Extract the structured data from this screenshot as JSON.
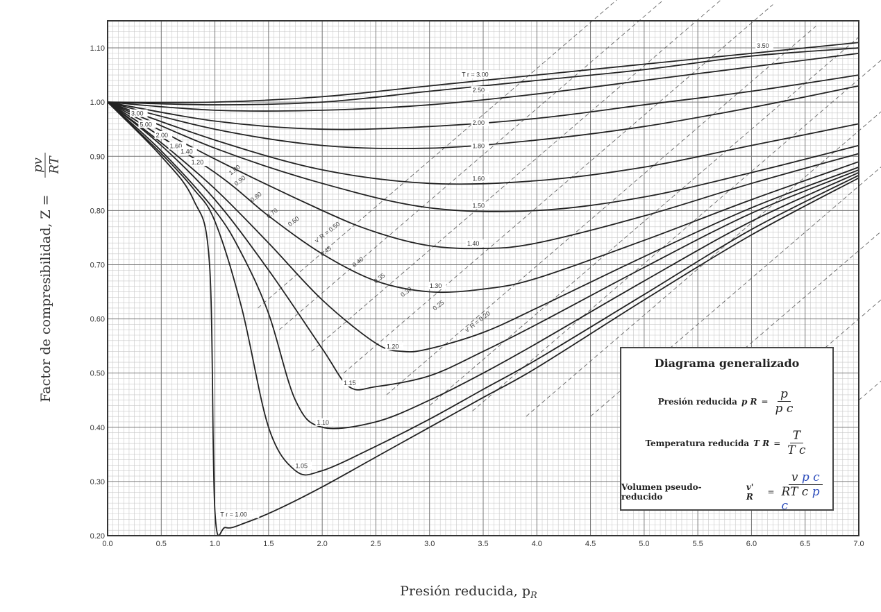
{
  "chart_data": {
    "type": "line",
    "title": "",
    "xlabel": "Presión reducida, p",
    "xlabel_sub": "R",
    "ylabel": "Factor de compresibilidad, Z = ",
    "ylabel_num": "pv",
    "ylabel_den": "RT",
    "xlim": [
      0.0,
      7.0
    ],
    "ylim": [
      0.2,
      1.15
    ],
    "grid": true,
    "x_ticks": [
      "0.0",
      "0.5",
      "1.0",
      "1.5",
      "2.0",
      "2.5",
      "3.0",
      "3.5",
      "4.0",
      "4.5",
      "5.0",
      "5.5",
      "6.0",
      "6.5",
      "7.0"
    ],
    "y_ticks": [
      "0.20",
      "0.30",
      "0.40",
      "0.50",
      "0.60",
      "0.70",
      "0.80",
      "0.90",
      "1.00",
      "1.10"
    ],
    "series": [
      {
        "name": "3.50",
        "x": [
          0,
          1,
          2,
          3,
          4,
          5,
          6,
          7
        ],
        "y": [
          1.0,
          1.0,
          1.01,
          1.03,
          1.05,
          1.07,
          1.09,
          1.11
        ]
      },
      {
        "name": "T r = 3.00",
        "x": [
          0,
          1,
          2,
          3,
          4,
          5,
          6,
          7
        ],
        "y": [
          1.0,
          0.995,
          1.0,
          1.02,
          1.04,
          1.06,
          1.085,
          1.1
        ]
      },
      {
        "name": "2.50",
        "x": [
          0,
          1,
          2,
          3,
          4,
          5,
          6,
          7
        ],
        "y": [
          1.0,
          0.985,
          0.985,
          0.995,
          1.015,
          1.04,
          1.065,
          1.09
        ]
      },
      {
        "name": "2.00",
        "x": [
          0,
          1,
          2,
          3,
          4,
          5,
          6,
          7
        ],
        "y": [
          1.0,
          0.965,
          0.95,
          0.955,
          0.97,
          0.995,
          1.02,
          1.05
        ]
      },
      {
        "name": "1.80",
        "x": [
          0,
          1,
          2,
          3,
          4,
          5,
          6,
          7
        ],
        "y": [
          1.0,
          0.95,
          0.92,
          0.915,
          0.93,
          0.955,
          0.99,
          1.03
        ]
      },
      {
        "name": "1.60",
        "x": [
          0,
          1,
          2,
          3,
          4,
          5,
          6,
          7
        ],
        "y": [
          1.0,
          0.93,
          0.875,
          0.85,
          0.855,
          0.88,
          0.92,
          0.96
        ]
      },
      {
        "name": "1.50",
        "x": [
          0,
          1,
          2,
          3,
          4,
          5,
          6,
          7
        ],
        "y": [
          1.0,
          0.915,
          0.85,
          0.805,
          0.8,
          0.825,
          0.87,
          0.92
        ]
      },
      {
        "name": "1.40",
        "x": [
          0,
          1,
          2,
          2.5,
          3,
          3.5,
          4,
          5,
          6,
          7
        ],
        "y": [
          1.0,
          0.895,
          0.8,
          0.76,
          0.735,
          0.73,
          0.74,
          0.79,
          0.85,
          0.905
        ]
      },
      {
        "name": "1.30",
        "x": [
          0,
          1,
          1.5,
          2,
          2.5,
          3,
          3.5,
          4,
          5,
          6,
          7
        ],
        "y": [
          1.0,
          0.87,
          0.79,
          0.72,
          0.67,
          0.65,
          0.655,
          0.675,
          0.745,
          0.82,
          0.89
        ]
      },
      {
        "name": "1.20",
        "x": [
          0,
          0.5,
          1,
          1.5,
          2,
          2.5,
          2.75,
          3,
          3.5,
          4,
          5,
          6,
          7
        ],
        "y": [
          1.0,
          0.925,
          0.84,
          0.74,
          0.635,
          0.555,
          0.54,
          0.545,
          0.575,
          0.62,
          0.715,
          0.805,
          0.88
        ]
      },
      {
        "name": "1.15",
        "x": [
          0,
          0.5,
          1,
          1.5,
          2,
          2.25,
          2.5,
          3,
          3.5,
          4,
          5,
          6,
          7
        ],
        "y": [
          1.0,
          0.92,
          0.82,
          0.69,
          0.545,
          0.475,
          0.475,
          0.495,
          0.54,
          0.59,
          0.695,
          0.795,
          0.875
        ]
      },
      {
        "name": "1.10",
        "x": [
          0,
          0.5,
          1,
          1.25,
          1.5,
          1.75,
          2,
          2.5,
          3,
          3.5,
          4,
          5,
          6,
          7
        ],
        "y": [
          1.0,
          0.91,
          0.8,
          0.72,
          0.61,
          0.45,
          0.4,
          0.41,
          0.45,
          0.5,
          0.555,
          0.67,
          0.78,
          0.87
        ]
      },
      {
        "name": "1.05",
        "x": [
          0,
          0.5,
          0.8,
          1,
          1.25,
          1.5,
          1.75,
          2,
          2.5,
          3,
          3.5,
          4,
          5,
          6,
          7
        ],
        "y": [
          1.0,
          0.905,
          0.84,
          0.78,
          0.62,
          0.4,
          0.32,
          0.32,
          0.365,
          0.415,
          0.47,
          0.525,
          0.645,
          0.765,
          0.865
        ]
      },
      {
        "name": "T r = 1.00",
        "x": [
          0,
          0.5,
          0.8,
          0.95,
          1,
          1.1,
          1.3,
          1.6,
          2,
          2.5,
          3,
          3.5,
          4,
          5,
          6,
          7
        ],
        "y": [
          1.0,
          0.9,
          0.82,
          0.7,
          0.245,
          0.215,
          0.225,
          0.25,
          0.29,
          0.345,
          0.4,
          0.455,
          0.51,
          0.635,
          0.755,
          0.86
        ]
      }
    ],
    "curve_labels": [
      {
        "text": "3.50",
        "x": 6.05,
        "y": 1.1
      },
      {
        "text": "T r = 3.00",
        "x": 3.3,
        "y": 1.047
      },
      {
        "text": "2.50",
        "x": 3.4,
        "y": 1.018
      },
      {
        "text": "2.00",
        "x": 3.4,
        "y": 0.958
      },
      {
        "text": "1.80",
        "x": 3.4,
        "y": 0.915
      },
      {
        "text": "1.60",
        "x": 3.4,
        "y": 0.855
      },
      {
        "text": "1.50",
        "x": 3.4,
        "y": 0.805
      },
      {
        "text": "1.40",
        "x": 3.35,
        "y": 0.735
      },
      {
        "text": "1.30",
        "x": 3.0,
        "y": 0.657
      },
      {
        "text": "1.20",
        "x": 2.6,
        "y": 0.545
      },
      {
        "text": "1.15",
        "x": 2.2,
        "y": 0.478
      },
      {
        "text": "1.10",
        "x": 1.95,
        "y": 0.405
      },
      {
        "text": "1.05",
        "x": 1.75,
        "y": 0.325
      },
      {
        "text": "T r = 1.00",
        "x": 1.05,
        "y": 0.235
      },
      {
        "text": "3.00",
        "x": 0.22,
        "y": 0.975
      },
      {
        "text": "5.00",
        "x": 0.3,
        "y": 0.955
      },
      {
        "text": "2.00",
        "x": 0.45,
        "y": 0.935
      },
      {
        "text": "1.60",
        "x": 0.58,
        "y": 0.915
      },
      {
        "text": "1.40",
        "x": 0.68,
        "y": 0.905
      },
      {
        "text": "1.20",
        "x": 0.78,
        "y": 0.885
      }
    ],
    "vr_labels": [
      {
        "text": "1.00",
        "x": 1.15,
        "y": 0.865
      },
      {
        "text": "0.90",
        "x": 1.2,
        "y": 0.845
      },
      {
        "text": "0.80",
        "x": 1.35,
        "y": 0.815
      },
      {
        "text": "0.70",
        "x": 1.5,
        "y": 0.785
      },
      {
        "text": "0.60",
        "x": 1.7,
        "y": 0.77
      },
      {
        "text": "v' R = 0.50",
        "x": 1.95,
        "y": 0.74
      },
      {
        "text": "0.45",
        "x": 2.0,
        "y": 0.715
      },
      {
        "text": "0.40",
        "x": 2.3,
        "y": 0.695
      },
      {
        "text": "0.35",
        "x": 2.5,
        "y": 0.665
      },
      {
        "text": "0.30",
        "x": 2.75,
        "y": 0.64
      },
      {
        "text": "0.25",
        "x": 3.05,
        "y": 0.615
      },
      {
        "text": "v' R = 0.20",
        "x": 3.35,
        "y": 0.575
      }
    ]
  },
  "info_box": {
    "title": "Diagrama generalizado",
    "pr_label": "Presión reducida",
    "pr_sym": "p R",
    "pr_num": "p",
    "pr_den": "p c",
    "tr_label": "Temperatura reducida",
    "tr_sym": "T R",
    "tr_num": "T",
    "tr_den": "T c",
    "vr_label": "Volumen pseudo-reducido",
    "vr_sym": "v' R",
    "vr_num": "v",
    "vr_num_hand": "p c",
    "vr_den": "RT c",
    "vr_den_hand": "p c"
  }
}
